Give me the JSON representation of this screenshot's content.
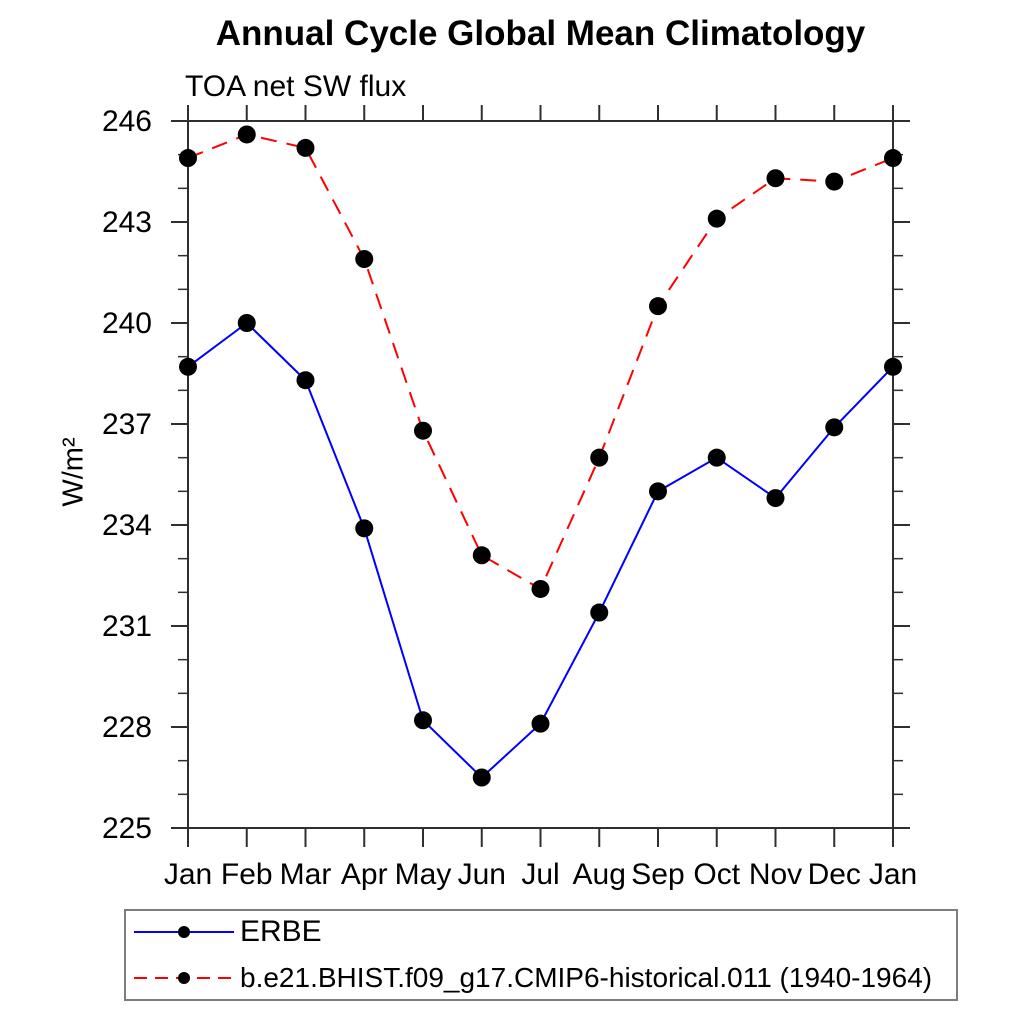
{
  "chart_data": {
    "type": "line",
    "title": "Annual Cycle Global Mean Climatology",
    "subtitle": "TOA net SW flux",
    "ylabel": "W/m²",
    "x_tick_labels": [
      "Jan",
      "Feb",
      "Mar",
      "Apr",
      "May",
      "Jun",
      "Jul",
      "Aug",
      "Sep",
      "Oct",
      "Nov",
      "Dec",
      "Jan"
    ],
    "ylim": [
      225,
      246
    ],
    "y_major_ticks": [
      225,
      228,
      231,
      234,
      237,
      240,
      243,
      246
    ],
    "y_minor_step": 1,
    "grid": false,
    "axis_color": "#2f2f2f",
    "tick_label_color": "#000000",
    "legend_position": "below-left",
    "series": [
      {
        "name": "ERBE",
        "line_color": "#0000ff",
        "line_style": "solid",
        "marker": "filled-circle",
        "marker_color": "#000000",
        "values": [
          238.7,
          240.0,
          238.3,
          233.9,
          228.2,
          226.5,
          228.1,
          231.4,
          235.0,
          236.0,
          234.8,
          236.9,
          238.7
        ]
      },
      {
        "name": "b.e21.BHIST.f09_g17.CMIP6-historical.011 (1940-1964)",
        "line_color": "#ff0000",
        "line_style": "dashed",
        "marker": "filled-circle",
        "marker_color": "#000000",
        "values": [
          244.9,
          245.6,
          245.2,
          241.9,
          236.8,
          233.1,
          232.1,
          236.0,
          240.5,
          243.1,
          244.3,
          244.2,
          244.9
        ]
      }
    ]
  }
}
